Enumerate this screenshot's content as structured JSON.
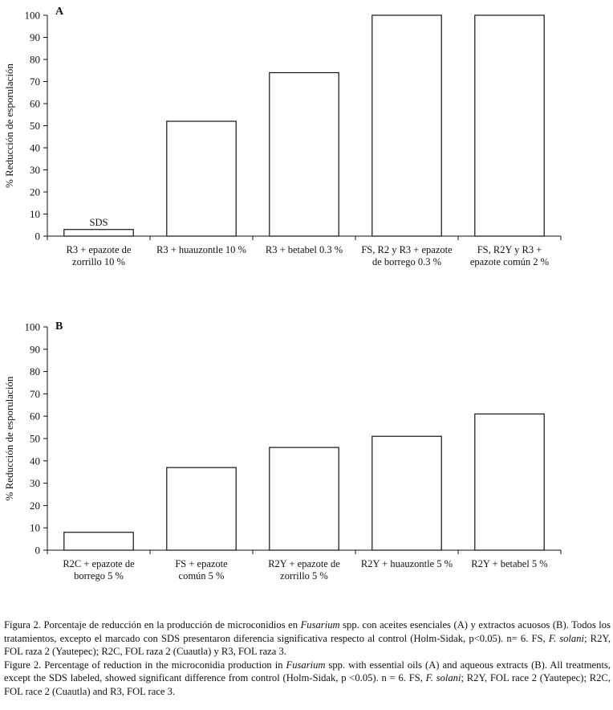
{
  "chart_data": [
    {
      "type": "bar",
      "panel": "A",
      "ylabel": "% Reducción de esporulación",
      "ylim": [
        0,
        100
      ],
      "yticks": [
        0,
        10,
        20,
        30,
        40,
        50,
        60,
        70,
        80,
        90,
        100
      ],
      "categories": [
        [
          "R3 + epazote de",
          "zorrillo 10 %"
        ],
        [
          "R3 + huauzontle 10 %"
        ],
        [
          "R3 + betabel 0.3 %"
        ],
        [
          "FS, R2 y R3 + epazote",
          "de borrego 0.3 %"
        ],
        [
          "FS, R2Y y R3 +",
          "epazote común 2 %"
        ]
      ],
      "values": [
        3,
        52,
        74,
        100,
        100
      ],
      "annotations": [
        {
          "category_index": 0,
          "text": "SDS"
        }
      ],
      "bar_color": "#ffffff",
      "grid": false
    },
    {
      "type": "bar",
      "panel": "B",
      "ylabel": "% Reducción de esporulación",
      "ylim": [
        0,
        100
      ],
      "yticks": [
        0,
        10,
        20,
        30,
        40,
        50,
        60,
        70,
        80,
        90,
        100
      ],
      "categories": [
        [
          "R2C + epazote de",
          "borrego 5 %"
        ],
        [
          "FS + epazote",
          "común 5 %"
        ],
        [
          "R2Y + epazote de",
          "zorrillo 5 %"
        ],
        [
          "R2Y + huauzontle 5 %"
        ],
        [
          "R2Y + betabel 5 %"
        ]
      ],
      "values": [
        8,
        37,
        46,
        51,
        61
      ],
      "annotations": [],
      "bar_color": "#ffffff",
      "grid": false
    }
  ],
  "caption": {
    "es": {
      "prefix": "Figura 2. Porcentaje de reducción en la producción de microconidios en ",
      "genus": "Fusarium",
      "mid": " spp. con aceites esenciales (A) y extractos acuosos (B). Todos los tratamientos, excepto el marcado con SDS presentaron diferencia significativa respecto al control (Holm-Sidak, p<0.05). n= 6. FS, ",
      "species": "F. solani",
      "suffix": "; R2Y, FOL raza 2 (Yautepec); R2C, FOL raza 2 (Cuautla) y R3, FOL raza 3."
    },
    "en": {
      "prefix": "Figure 2. Percentage of reduction in the microconidia production in ",
      "genus": "Fusarium",
      "mid": " spp. with essential oils (A) and aqueous extracts (B). All treatments, except the SDS labeled, showed significant difference from control (Holm-Sidak, p <0.05). n = 6. FS, ",
      "species": "F. solani",
      "suffix": "; R2Y, FOL race 2 (Yautepec); R2C, FOL race 2 (Cuautla) and R3, FOL race 3."
    }
  }
}
